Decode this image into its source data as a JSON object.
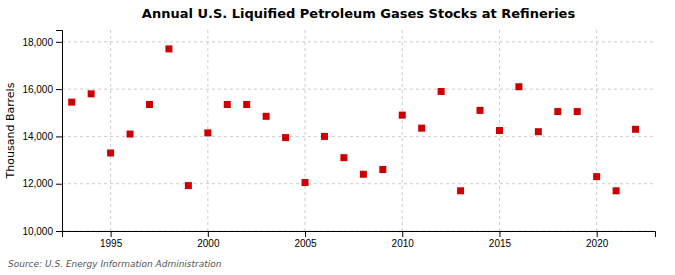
{
  "chart_data": {
    "type": "scatter",
    "title": "Annual U.S. Liquified Petroleum Gases Stocks at Refineries",
    "ylabel": "Thousand Barrels",
    "annotations": [
      "Source: U.S. Energy Information Administration"
    ],
    "x": [
      1993,
      1994,
      1995,
      1996,
      1997,
      1998,
      1999,
      2000,
      2001,
      2002,
      2003,
      2004,
      2005,
      2006,
      2007,
      2008,
      2009,
      2010,
      2011,
      2012,
      2013,
      2014,
      2015,
      2016,
      2017,
      2018,
      2019,
      2020,
      2021,
      2022
    ],
    "values": [
      15450,
      15800,
      13300,
      14100,
      15350,
      17700,
      11920,
      14150,
      15350,
      15350,
      14850,
      13950,
      12050,
      14000,
      13100,
      12400,
      12600,
      14900,
      14350,
      15900,
      11700,
      15100,
      14250,
      16100,
      14200,
      15050,
      15050,
      12300,
      11700,
      14300
    ],
    "color": "#cc0000",
    "marker": "square",
    "xlim": [
      1992.5,
      2023
    ],
    "ylim": [
      10000,
      18500
    ],
    "xticks": [
      1995,
      2000,
      2005,
      2010,
      2015,
      2020
    ],
    "yticks": [
      {
        "value": 10000,
        "label": "10,000"
      },
      {
        "value": 12000,
        "label": "12,000"
      },
      {
        "value": 14000,
        "label": "14,000"
      },
      {
        "value": 16000,
        "label": "16,000"
      },
      {
        "value": 18000,
        "label": "18,000"
      }
    ],
    "grid": true
  }
}
